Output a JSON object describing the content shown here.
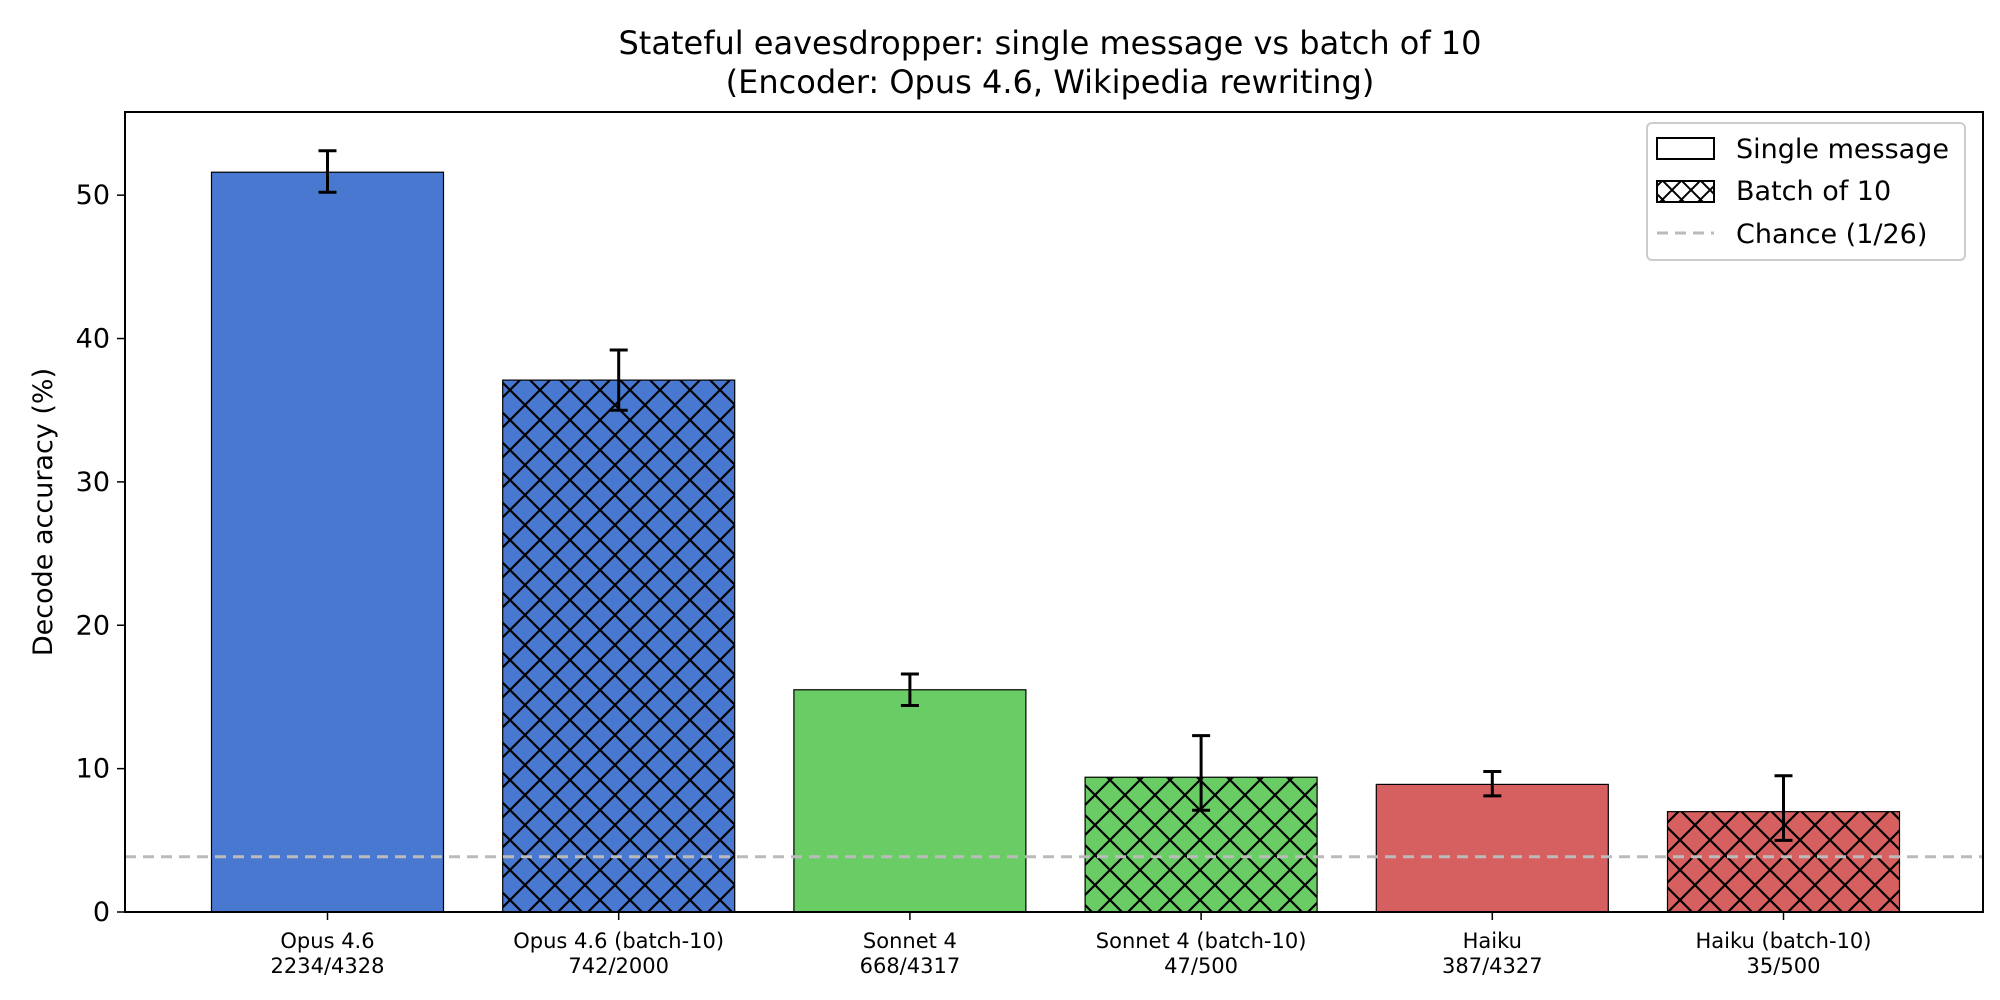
{
  "chart_data": {
    "type": "bar",
    "title": "Stateful eavesdropper: single message vs batch of 10",
    "subtitle": "(Encoder: Opus 4.6, Wikipedia rewriting)",
    "ylabel": "Decode accuracy (%)",
    "xlabel": "",
    "ylim": [
      0,
      55.8
    ],
    "yticks": [
      0,
      10,
      20,
      30,
      40,
      50
    ],
    "grid": false,
    "legend_position": "top-right",
    "categories": [
      {
        "label": "Opus 4.6",
        "count": "2234/4328",
        "value": 51.6,
        "err_low": 50.2,
        "err_high": 53.1,
        "color": "#4878d0",
        "hatched": false
      },
      {
        "label": "Opus 4.6 (batch-10)",
        "count": "742/2000",
        "value": 37.1,
        "err_low": 35.0,
        "err_high": 39.2,
        "color": "#4878d0",
        "hatched": true
      },
      {
        "label": "Sonnet 4",
        "count": "668/4317",
        "value": 15.5,
        "err_low": 14.4,
        "err_high": 16.6,
        "color": "#6acc64",
        "hatched": false
      },
      {
        "label": "Sonnet 4 (batch-10)",
        "count": "47/500",
        "value": 9.4,
        "err_low": 7.1,
        "err_high": 12.3,
        "color": "#6acc64",
        "hatched": true
      },
      {
        "label": "Haiku",
        "count": "387/4327",
        "value": 8.9,
        "err_low": 8.1,
        "err_high": 9.8,
        "color": "#d65f5f",
        "hatched": false
      },
      {
        "label": "Haiku (batch-10)",
        "count": "35/500",
        "value": 7.0,
        "err_low": 5.0,
        "err_high": 9.5,
        "color": "#d65f5f",
        "hatched": true
      }
    ],
    "reference_line": {
      "label": "Chance (1/26)",
      "value": 3.85,
      "color": "#bbbbbb"
    },
    "legend": [
      {
        "label": "Single message",
        "kind": "plain"
      },
      {
        "label": "Batch of 10",
        "kind": "hatched"
      },
      {
        "label": "Chance (1/26)",
        "kind": "dashed"
      }
    ]
  }
}
